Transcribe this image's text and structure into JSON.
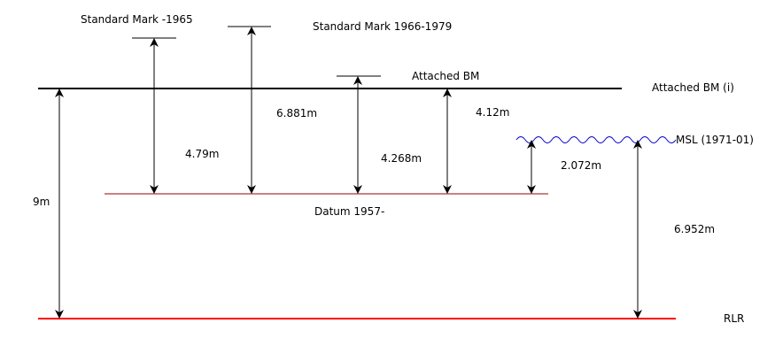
{
  "labels": {
    "standard_mark_1965": "Standard Mark -1965",
    "standard_mark_1966_1979": "Standard Mark 1966-1979",
    "attached_bm": "Attached BM",
    "attached_bm_i": "Attached BM (i)",
    "msl": "MSL (1971-01)",
    "datum": "Datum 1957-",
    "rlr": "RLR"
  },
  "measurements": {
    "rlr_to_attached_bm": "9m",
    "datum_to_standard_mark_1965": "4.79m",
    "datum_to_standard_mark_1966_1979": "6.881m",
    "datum_to_attached_bm_mark": "4.268m",
    "datum_to_attached_bm_i": "4.12m",
    "datum_to_msl": "2.072m",
    "rlr_to_msl": "6.952m"
  },
  "colors": {
    "attached_bm_line": "#000000",
    "datum_line": "#990000",
    "rlr_line": "#ff0000",
    "msl_wave": "#0000cc",
    "arrows": "#000000"
  }
}
